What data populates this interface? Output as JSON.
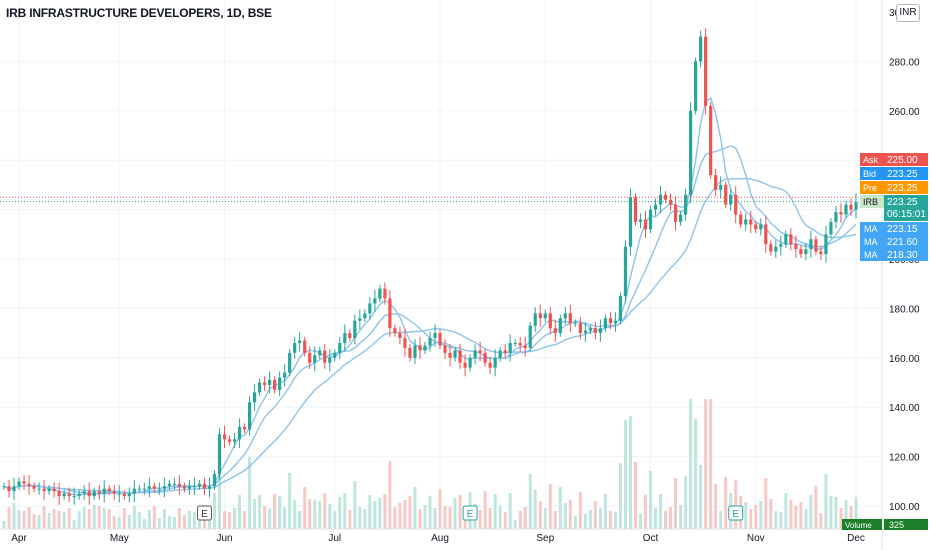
{
  "header": {
    "title": "IRB INFRASTRUCTURE DEVELOPERS, 1D, BSE",
    "currency": "INR"
  },
  "colors": {
    "up": "#26a69a",
    "down": "#ef5350",
    "ma": "#8fc3ea",
    "vol_up": "#bfe5df",
    "vol_down": "#f6c9c7",
    "ask": "#ef5350",
    "bid": "#2196f3",
    "pre": "#ff9800",
    "last": "#26a69a",
    "ma_tag": "#42a5f5"
  },
  "chart_data": {
    "type": "candlestick",
    "title": "IRB INFRASTRUCTURE DEVELOPERS, 1D, BSE",
    "ylim": [
      92,
      305
    ],
    "y_ticks": [
      100,
      120,
      140,
      160,
      180,
      200,
      220,
      240,
      260,
      280
    ],
    "y_tick_labels": [
      "100.00",
      "120.00",
      "140.00",
      "160.00",
      "180.00",
      "200.00",
      "220.00",
      "240.00",
      "260.00",
      "280.00"
    ],
    "top_partial_label": "30",
    "months": [
      {
        "label": "Apr",
        "index": 3
      },
      {
        "label": "May",
        "index": 23
      },
      {
        "label": "Jun",
        "index": 44
      },
      {
        "label": "Jul",
        "index": 66
      },
      {
        "label": "Aug",
        "index": 87
      },
      {
        "label": "Sep",
        "index": 108
      },
      {
        "label": "Oct",
        "index": 129
      },
      {
        "label": "Nov",
        "index": 150
      },
      {
        "label": "Dec",
        "index": 170
      }
    ],
    "events": [
      {
        "label": "E",
        "index": 40
      },
      {
        "label": "E",
        "index": 93
      },
      {
        "label": "E",
        "index": 146
      }
    ],
    "closes": [
      108,
      106,
      108,
      110,
      109,
      108,
      107,
      107,
      106,
      107,
      106,
      104,
      105,
      104,
      104,
      105,
      106,
      104,
      106,
      105,
      107,
      106,
      105,
      105,
      104,
      105,
      107,
      107,
      107,
      108,
      107,
      107,
      108,
      109,
      109,
      108,
      107,
      108,
      108,
      109,
      107,
      108,
      113,
      129,
      127,
      126,
      127,
      132,
      131,
      142,
      146,
      150,
      149,
      151,
      147,
      152,
      154,
      162,
      166,
      167,
      162,
      158,
      161,
      163,
      158,
      160,
      162,
      166,
      170,
      168,
      175,
      176,
      178,
      182,
      184,
      188,
      184,
      172,
      170,
      168,
      164,
      160,
      165,
      163,
      165,
      168,
      170,
      165,
      162,
      160,
      163,
      158,
      156,
      160,
      163,
      162,
      158,
      156,
      160,
      163,
      162,
      166,
      166,
      165,
      164,
      173,
      178,
      176,
      178,
      172,
      170,
      176,
      178,
      174,
      174,
      170,
      171,
      172,
      170,
      172,
      176,
      174,
      175,
      185,
      205,
      225,
      215,
      216,
      212,
      220,
      222,
      226,
      224,
      222,
      215,
      218,
      226,
      260,
      280,
      290,
      262,
      234,
      228,
      230,
      222,
      226,
      218,
      214,
      216,
      214,
      212,
      214,
      206,
      203,
      205,
      206,
      210,
      206,
      204,
      202,
      204,
      208,
      203,
      202,
      210,
      215,
      219,
      218,
      222,
      220,
      223
    ],
    "ma_series": [
      {
        "name": "MA",
        "last": "223.15"
      },
      {
        "name": "MA",
        "last": "221.60"
      },
      {
        "name": "MA",
        "last": "218.30"
      }
    ],
    "price_tags": [
      {
        "label": "Ask",
        "value": "225.00",
        "price": 225.0
      },
      {
        "label": "Bid",
        "value": "223.25",
        "price": 223.25
      },
      {
        "label": "Pre",
        "value": "223.25",
        "price": 223.25
      },
      {
        "label": "IRB",
        "value": "223.25",
        "price": 223.25,
        "countdown": "06:15:01"
      }
    ],
    "volume": {
      "label": "Volume",
      "value": "325"
    }
  }
}
